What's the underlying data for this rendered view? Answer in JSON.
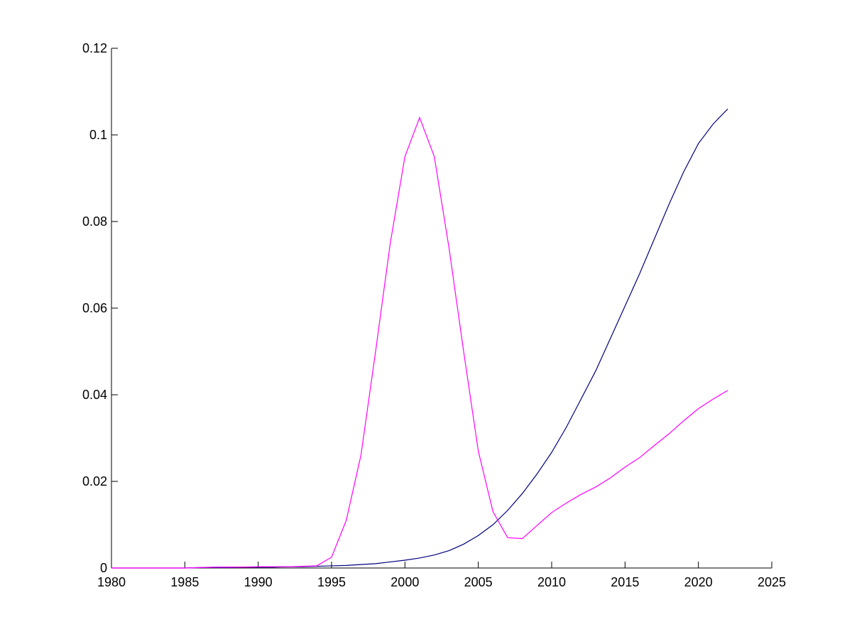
{
  "chart_data": {
    "type": "line",
    "x": [
      1980,
      1981,
      1982,
      1983,
      1984,
      1985,
      1986,
      1987,
      1988,
      1989,
      1990,
      1991,
      1992,
      1993,
      1994,
      1995,
      1996,
      1997,
      1998,
      1999,
      2000,
      2001,
      2002,
      2003,
      2004,
      2005,
      2006,
      2007,
      2008,
      2009,
      2010,
      2011,
      2012,
      2013,
      2014,
      2015,
      2016,
      2017,
      2018,
      2019,
      2020,
      2021,
      2022
    ],
    "series": [
      {
        "color": "#00007f",
        "values": [
          0,
          0,
          0,
          0,
          0,
          0,
          0.0001,
          0.0001,
          0.0001,
          0.0002,
          0.0002,
          0.0002,
          0.0003,
          0.0003,
          0.0004,
          0.0005,
          0.0006,
          0.0008,
          0.001,
          0.0014,
          0.0018,
          0.0023,
          0.003,
          0.004,
          0.0055,
          0.0075,
          0.01,
          0.0133,
          0.0172,
          0.0217,
          0.0267,
          0.0325,
          0.039,
          0.0455,
          0.053,
          0.0605,
          0.068,
          0.076,
          0.084,
          0.0915,
          0.098,
          0.1025,
          0.106
        ]
      },
      {
        "color": "#ff00ff",
        "values": [
          0,
          0,
          0,
          0,
          0,
          0,
          0.0001,
          0.0002,
          0.0002,
          0.0002,
          0.0003,
          0.0003,
          0.0003,
          0.0004,
          0.0005,
          0.0025,
          0.011,
          0.026,
          0.05,
          0.075,
          0.095,
          0.104,
          0.095,
          0.074,
          0.05,
          0.027,
          0.013,
          0.007,
          0.0068,
          0.0098,
          0.0128,
          0.015,
          0.017,
          0.0187,
          0.0208,
          0.0233,
          0.0255,
          0.0283,
          0.031,
          0.034,
          0.0368,
          0.039,
          0.041
        ]
      }
    ],
    "xlim": [
      1980,
      2025
    ],
    "xticks": [
      1980,
      1985,
      1990,
      1995,
      2000,
      2005,
      2010,
      2015,
      2020,
      2025
    ],
    "ylim": [
      0,
      0.12
    ],
    "yticks": [
      0,
      0.02,
      0.04,
      0.06,
      0.08,
      0.1,
      0.12
    ]
  }
}
